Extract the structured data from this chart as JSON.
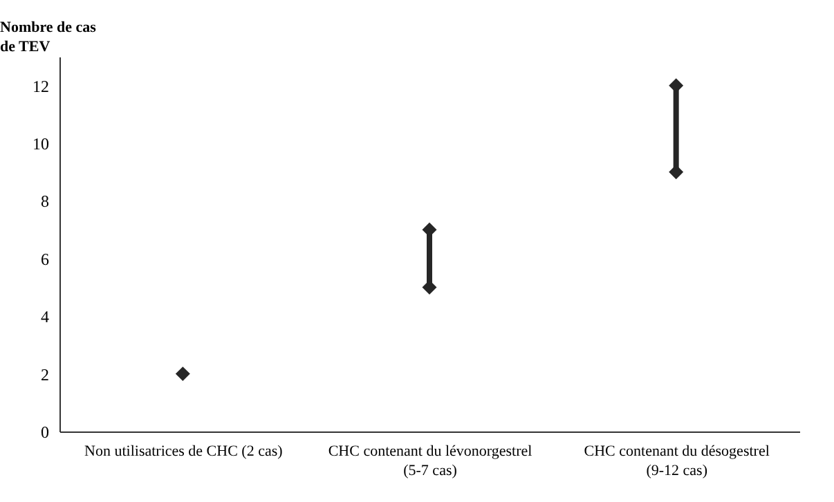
{
  "chart_data": {
    "type": "line",
    "ylabel": "Nombre de cas de TEV",
    "categories": [
      "Non utilisatrices de CHC (2 cas)",
      "CHC contenant du lévonorgestrel (5-7 cas)",
      "CHC contenant du désogestrel (9-12 cas)"
    ],
    "series": [
      {
        "color": "#262626",
        "x": [
          "Non utilisatrices de CHC (2 cas)"
        ],
        "values": [
          2
        ]
      },
      {
        "color": "#262626",
        "x": [
          "CHC contenant du lévonorgestrel (5-7 cas)",
          "CHC contenant du lévonorgestrel (5-7 cas)"
        ],
        "values": [
          5,
          7
        ]
      },
      {
        "color": "#262626",
        "x": [
          "CHC contenant du désogestrel (9-12 cas)",
          "CHC contenant du désogestrel (9-12 cas)"
        ],
        "values": [
          9,
          12
        ]
      }
    ],
    "ylim": [
      0,
      13
    ],
    "yticks": [
      0,
      2,
      4,
      6,
      8,
      10,
      12
    ],
    "grid": false,
    "legend": false,
    "marker": "diamond",
    "line_style": "solid"
  }
}
